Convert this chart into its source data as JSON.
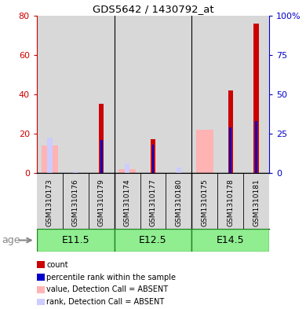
{
  "title": "GDS5642 / 1430792_at",
  "samples": [
    "GSM1310173",
    "GSM1310176",
    "GSM1310179",
    "GSM1310174",
    "GSM1310177",
    "GSM1310180",
    "GSM1310175",
    "GSM1310178",
    "GSM1310181"
  ],
  "age_groups": [
    {
      "label": "E11.5",
      "start": 0,
      "end": 3
    },
    {
      "label": "E12.5",
      "start": 3,
      "end": 6
    },
    {
      "label": "E14.5",
      "start": 6,
      "end": 9
    }
  ],
  "count_values": [
    0,
    0,
    35,
    0,
    17,
    0,
    0,
    42,
    76
  ],
  "percentile_values": [
    0,
    0,
    21,
    0,
    18,
    0,
    0,
    29,
    33
  ],
  "absent_value_values": [
    14,
    0,
    0,
    2,
    0,
    0,
    22,
    0,
    0
  ],
  "absent_rank_values": [
    18,
    1,
    0,
    5,
    0,
    3,
    0,
    0,
    0
  ],
  "ylim_left": [
    0,
    80
  ],
  "ylim_right": [
    0,
    100
  ],
  "yticks_left": [
    0,
    20,
    40,
    60,
    80
  ],
  "ytick_labels_left": [
    "0",
    "20",
    "40",
    "60",
    "80"
  ],
  "yticks_right": [
    0,
    25,
    50,
    75,
    100
  ],
  "ytick_labels_right": [
    "0",
    "25",
    "50",
    "75",
    "100%"
  ],
  "color_count": "#cc0000",
  "color_percentile": "#0000cc",
  "color_absent_value": "#ffb3b3",
  "color_absent_rank": "#ccccff",
  "age_label": "age",
  "age_group_color": "#90ee90",
  "age_group_border_color": "#228822",
  "sample_col_color": "#d8d8d8",
  "legend_items": [
    {
      "color": "#cc0000",
      "label": "count"
    },
    {
      "color": "#0000cc",
      "label": "percentile rank within the sample"
    },
    {
      "color": "#ffb3b3",
      "label": "value, Detection Call = ABSENT"
    },
    {
      "color": "#ccccff",
      "label": "rank, Detection Call = ABSENT"
    }
  ]
}
